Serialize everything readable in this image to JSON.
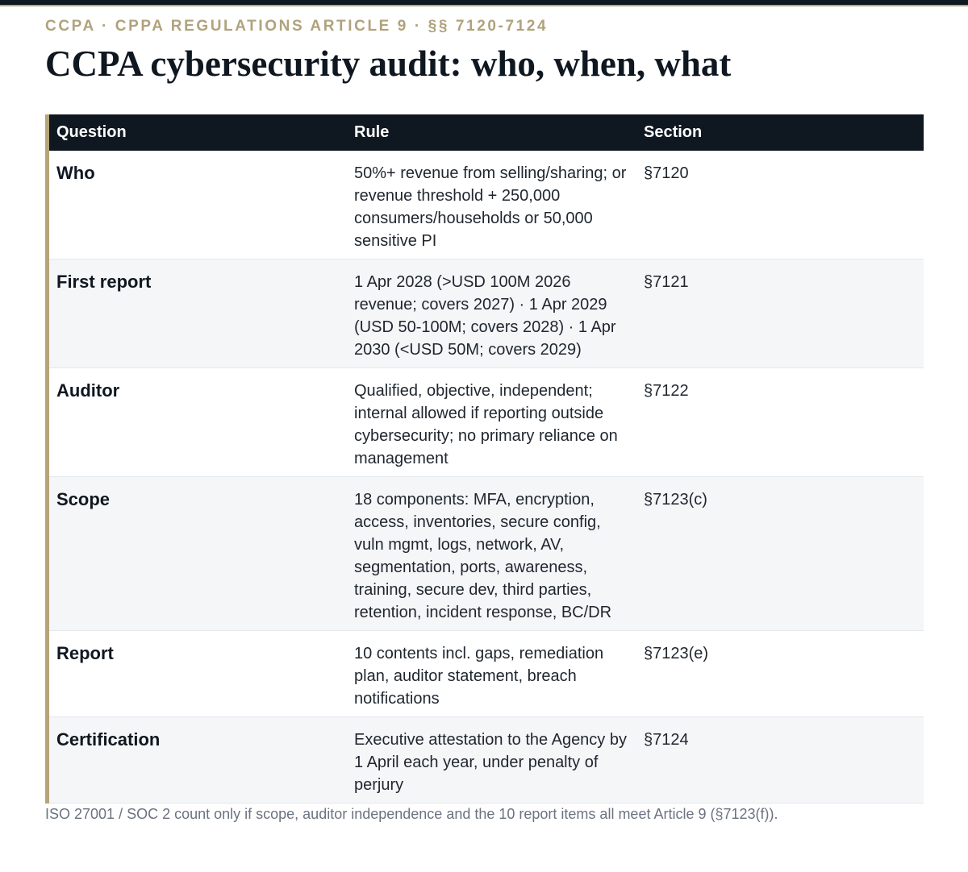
{
  "header": {
    "eyebrow": "CCPA · CPPA REGULATIONS ARTICLE 9 · §§ 7120-7124",
    "title": "CCPA cybersecurity audit: who, when, what"
  },
  "table": {
    "columns": [
      "Question",
      "Rule",
      "Section"
    ],
    "rows": [
      {
        "question": "Who",
        "rule": "50%+ revenue from selling/sharing; or revenue threshold + 250,000 consumers/households or 50,000 sensitive PI",
        "section": "§7120"
      },
      {
        "question": "First report",
        "rule": "1 Apr 2028 (>USD 100M 2026 revenue; covers 2027) · 1 Apr 2029 (USD 50-100M; covers 2028) · 1 Apr 2030 (<USD 50M; covers 2029)",
        "section": "§7121"
      },
      {
        "question": "Auditor",
        "rule": "Qualified, objective, independent; internal allowed if reporting outside cybersecurity; no primary reliance on management",
        "section": "§7122"
      },
      {
        "question": "Scope",
        "rule": "18 components: MFA, encryption, access, inventories, secure config, vuln mgmt, logs, network, AV, segmentation, ports, awareness, training, secure dev, third parties, retention, incident response, BC/DR",
        "section": "§7123(c)"
      },
      {
        "question": "Report",
        "rule": "10 contents incl. gaps, remediation plan, auditor statement, breach notifications",
        "section": "§7123(e)"
      },
      {
        "question": "Certification",
        "rule": "Executive attestation to the Agency by 1 April each year, under penalty of perjury",
        "section": "§7124"
      }
    ]
  },
  "footnote": "ISO 27001 / SOC 2 count only if scope, auditor independence and the 10 report items all meet Article 9 (§7123(f))."
}
